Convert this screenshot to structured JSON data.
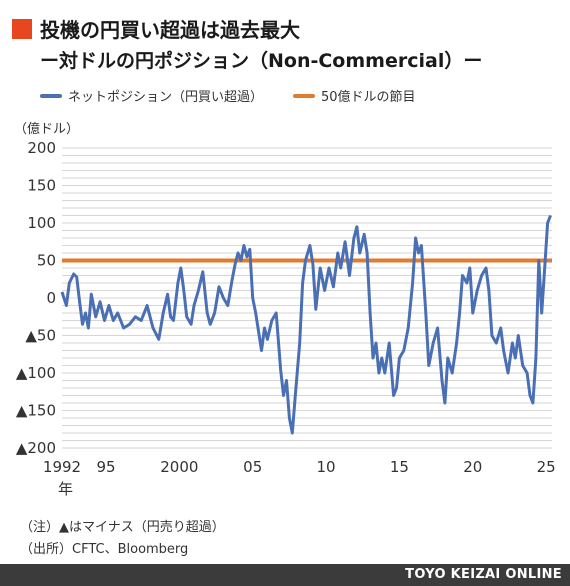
{
  "title": "投機の円買い超過は過去最大",
  "subtitle": "ー対ドルの円ポジション（Non-Commercial）ー",
  "footer": "TOYO KEIZAI ONLINE",
  "notes": [
    "（注）▲はマイナス（円売り超過）",
    "（出所）CFTC、Bloomberg"
  ],
  "colors": {
    "accent": "#e8461e",
    "series": "#4a6fb5",
    "reference": "#e07b30",
    "footer_bg": "#3b3b3b"
  },
  "chart_data": {
    "type": "line",
    "unit_label": "（億ドル）",
    "x_suffix_label": "年",
    "ylim": [
      -200,
      200
    ],
    "xlim": [
      1992,
      2025.4
    ],
    "grid": true,
    "legend_position": "top",
    "y_ticks": [
      {
        "value": 200,
        "label": "200"
      },
      {
        "value": 150,
        "label": "150"
      },
      {
        "value": 100,
        "label": "100"
      },
      {
        "value": 50,
        "label": "50"
      },
      {
        "value": 0,
        "label": "0"
      },
      {
        "value": -50,
        "label": "▲50"
      },
      {
        "value": -100,
        "label": "▲100"
      },
      {
        "value": -150,
        "label": "▲150"
      },
      {
        "value": -200,
        "label": "▲200"
      }
    ],
    "x_ticks": [
      {
        "value": 1992,
        "label": "1992"
      },
      {
        "value": 1995,
        "label": "95"
      },
      {
        "value": 2000,
        "label": "2000"
      },
      {
        "value": 2005,
        "label": "05"
      },
      {
        "value": 2010,
        "label": "10"
      },
      {
        "value": 2015,
        "label": "15"
      },
      {
        "value": 2020,
        "label": "20"
      },
      {
        "value": 2025,
        "label": "25"
      }
    ],
    "series": [
      {
        "name": "ネットポジション（円買い超過）",
        "points": [
          [
            1992.0,
            8
          ],
          [
            1992.3,
            -10
          ],
          [
            1992.5,
            20
          ],
          [
            1992.8,
            32
          ],
          [
            1993.0,
            28
          ],
          [
            1993.2,
            -5
          ],
          [
            1993.4,
            -35
          ],
          [
            1993.6,
            -20
          ],
          [
            1993.8,
            -40
          ],
          [
            1994.0,
            5
          ],
          [
            1994.3,
            -25
          ],
          [
            1994.6,
            -5
          ],
          [
            1994.9,
            -30
          ],
          [
            1995.2,
            -10
          ],
          [
            1995.5,
            -30
          ],
          [
            1995.8,
            -20
          ],
          [
            1996.2,
            -40
          ],
          [
            1996.6,
            -35
          ],
          [
            1997.0,
            -25
          ],
          [
            1997.4,
            -30
          ],
          [
            1997.8,
            -10
          ],
          [
            1998.2,
            -40
          ],
          [
            1998.6,
            -55
          ],
          [
            1998.9,
            -20
          ],
          [
            1999.2,
            5
          ],
          [
            1999.4,
            -25
          ],
          [
            1999.6,
            -30
          ],
          [
            1999.9,
            20
          ],
          [
            2000.1,
            40
          ],
          [
            2000.3,
            10
          ],
          [
            2000.5,
            -25
          ],
          [
            2000.8,
            -35
          ],
          [
            2001.0,
            -10
          ],
          [
            2001.3,
            10
          ],
          [
            2001.6,
            35
          ],
          [
            2001.9,
            -20
          ],
          [
            2002.1,
            -35
          ],
          [
            2002.4,
            -20
          ],
          [
            2002.7,
            15
          ],
          [
            2003.0,
            0
          ],
          [
            2003.3,
            -10
          ],
          [
            2003.6,
            25
          ],
          [
            2003.8,
            45
          ],
          [
            2004.0,
            60
          ],
          [
            2004.2,
            50
          ],
          [
            2004.4,
            70
          ],
          [
            2004.6,
            55
          ],
          [
            2004.8,
            65
          ],
          [
            2005.0,
            0
          ],
          [
            2005.2,
            -20
          ],
          [
            2005.4,
            -45
          ],
          [
            2005.6,
            -70
          ],
          [
            2005.8,
            -40
          ],
          [
            2006.0,
            -55
          ],
          [
            2006.3,
            -30
          ],
          [
            2006.6,
            -20
          ],
          [
            2006.9,
            -95
          ],
          [
            2007.1,
            -130
          ],
          [
            2007.3,
            -110
          ],
          [
            2007.5,
            -160
          ],
          [
            2007.7,
            -180
          ],
          [
            2007.9,
            -130
          ],
          [
            2008.2,
            -60
          ],
          [
            2008.4,
            20
          ],
          [
            2008.6,
            50
          ],
          [
            2008.9,
            70
          ],
          [
            2009.1,
            45
          ],
          [
            2009.3,
            -15
          ],
          [
            2009.6,
            40
          ],
          [
            2009.9,
            10
          ],
          [
            2010.2,
            40
          ],
          [
            2010.5,
            15
          ],
          [
            2010.8,
            60
          ],
          [
            2011.0,
            40
          ],
          [
            2011.3,
            75
          ],
          [
            2011.6,
            30
          ],
          [
            2011.9,
            80
          ],
          [
            2012.1,
            95
          ],
          [
            2012.3,
            60
          ],
          [
            2012.6,
            85
          ],
          [
            2012.8,
            60
          ],
          [
            2013.0,
            -20
          ],
          [
            2013.2,
            -80
          ],
          [
            2013.4,
            -60
          ],
          [
            2013.6,
            -100
          ],
          [
            2013.8,
            -80
          ],
          [
            2014.0,
            -100
          ],
          [
            2014.3,
            -60
          ],
          [
            2014.6,
            -130
          ],
          [
            2014.8,
            -120
          ],
          [
            2015.0,
            -80
          ],
          [
            2015.3,
            -70
          ],
          [
            2015.6,
            -40
          ],
          [
            2015.9,
            20
          ],
          [
            2016.1,
            80
          ],
          [
            2016.3,
            60
          ],
          [
            2016.5,
            70
          ],
          [
            2016.8,
            -20
          ],
          [
            2017.0,
            -90
          ],
          [
            2017.3,
            -60
          ],
          [
            2017.6,
            -40
          ],
          [
            2017.9,
            -110
          ],
          [
            2018.1,
            -140
          ],
          [
            2018.3,
            -80
          ],
          [
            2018.6,
            -100
          ],
          [
            2018.9,
            -60
          ],
          [
            2019.1,
            -20
          ],
          [
            2019.3,
            30
          ],
          [
            2019.6,
            20
          ],
          [
            2019.8,
            40
          ],
          [
            2020.0,
            -20
          ],
          [
            2020.3,
            10
          ],
          [
            2020.6,
            30
          ],
          [
            2020.9,
            40
          ],
          [
            2021.1,
            10
          ],
          [
            2021.3,
            -50
          ],
          [
            2021.6,
            -60
          ],
          [
            2021.9,
            -40
          ],
          [
            2022.1,
            -70
          ],
          [
            2022.4,
            -100
          ],
          [
            2022.7,
            -60
          ],
          [
            2022.9,
            -80
          ],
          [
            2023.1,
            -50
          ],
          [
            2023.4,
            -90
          ],
          [
            2023.7,
            -100
          ],
          [
            2023.9,
            -130
          ],
          [
            2024.1,
            -140
          ],
          [
            2024.3,
            -80
          ],
          [
            2024.5,
            50
          ],
          [
            2024.7,
            -20
          ],
          [
            2024.9,
            40
          ],
          [
            2025.1,
            100
          ],
          [
            2025.3,
            110
          ]
        ]
      },
      {
        "name": "50億ドルの節目",
        "value": 50
      }
    ]
  }
}
